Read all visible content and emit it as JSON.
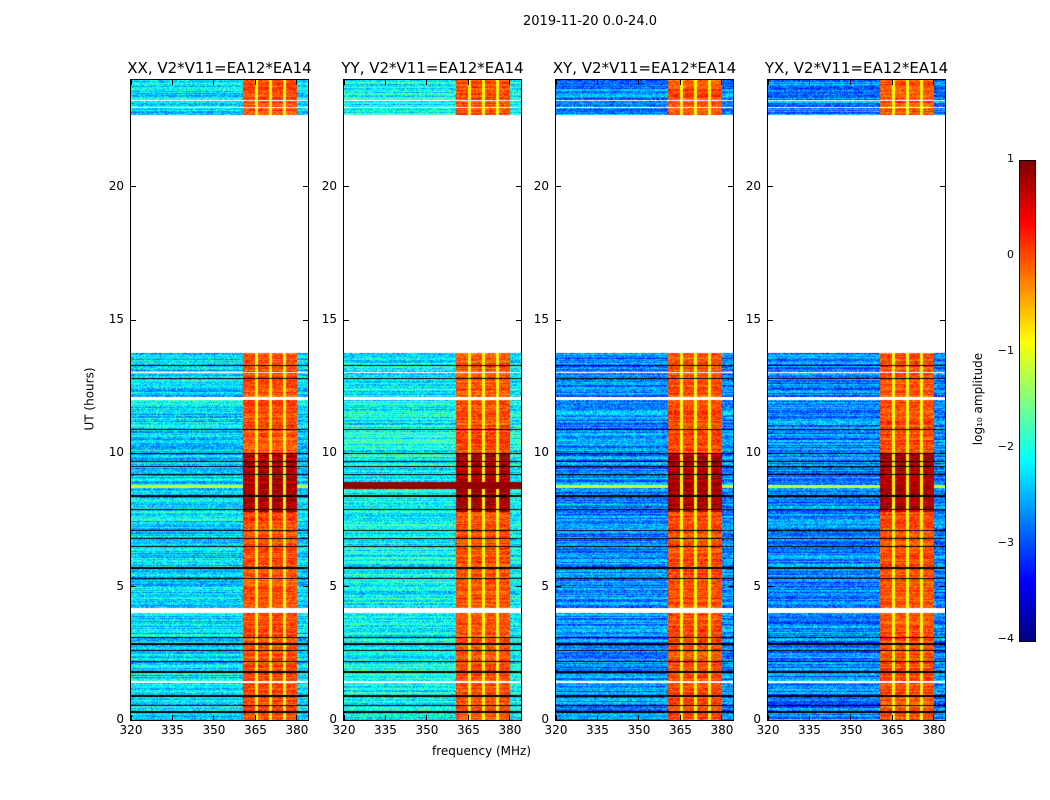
{
  "suptitle": "2019-11-20 0.0-24.0",
  "chart_data": {
    "type": "heatmap",
    "title": "2019-11-20 0.0-24.0",
    "xlabel": "frequency (MHz)",
    "ylabel": "UT (hours)",
    "xlim": [
      320,
      384
    ],
    "ylim": [
      0,
      24
    ],
    "xticks": [
      "320",
      "335",
      "350",
      "365",
      "380"
    ],
    "xtick_values": [
      320,
      335,
      350,
      365,
      380
    ],
    "yticks": [
      "0",
      "5",
      "10",
      "15",
      "20"
    ],
    "ytick_values": [
      0,
      5,
      10,
      15,
      20
    ],
    "panels": [
      {
        "title": "XX, V2*V11=EA12*EA14",
        "rfi_line": false,
        "background": -2.3
      },
      {
        "title": "YY, V2*V11=EA12*EA14",
        "rfi_line": true,
        "background": -2.1
      },
      {
        "title": "XY, V2*V11=EA12*EA14",
        "rfi_line": false,
        "background": -2.7
      },
      {
        "title": "YX, V2*V11=EA12*EA14",
        "rfi_line": false,
        "background": -2.7
      }
    ],
    "strong_band_mhz": [
      360.5,
      380
    ],
    "strong_band_level": 0.0,
    "peak_hours": [
      7.8,
      10.0
    ],
    "peak_level": 0.8,
    "no_data_hours": [
      [
        13.75,
        22.7
      ]
    ],
    "flagged_hours": [
      [
        4.0,
        4.2
      ],
      [
        12.0,
        12.1
      ],
      [
        13.0,
        13.05
      ],
      [
        1.4,
        1.45
      ],
      [
        22.95,
        23.0
      ],
      [
        23.2,
        23.25
      ]
    ],
    "colorbar": {
      "label": "log₁₀ amplitude",
      "range": [
        -4,
        1
      ],
      "ticks": [
        "1",
        "0",
        "−1",
        "−2",
        "−3",
        "−4"
      ],
      "tick_values": [
        1,
        0,
        -1,
        -2,
        -3,
        -4
      ],
      "colormap": "jet"
    }
  }
}
